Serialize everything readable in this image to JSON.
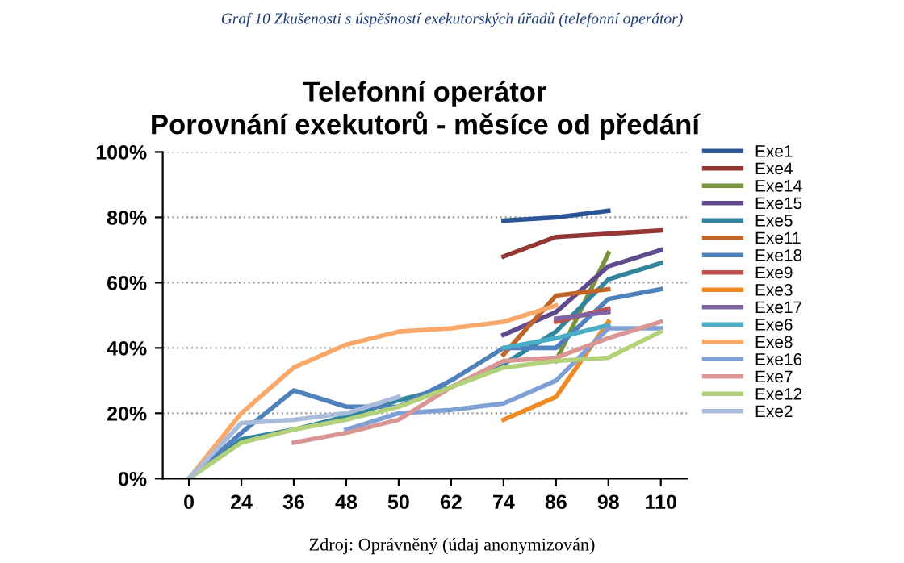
{
  "chart_data": {
    "type": "line",
    "title": "Telefonní operátor\nPorovnání exekutorů - měsíce od předání",
    "categories": [
      "0",
      "24",
      "36",
      "48",
      "50",
      "62",
      "74",
      "86",
      "98",
      "110"
    ],
    "series": [
      {
        "name": "Exe1",
        "color": "#2c5597",
        "values": [
          null,
          null,
          null,
          null,
          null,
          null,
          0.79,
          0.8,
          0.82,
          null
        ]
      },
      {
        "name": "Exe4",
        "color": "#943634",
        "values": [
          null,
          null,
          null,
          null,
          null,
          null,
          0.68,
          0.74,
          0.75,
          0.76
        ]
      },
      {
        "name": "Exe14",
        "color": "#77933c",
        "values": [
          null,
          null,
          null,
          null,
          null,
          null,
          null,
          0.36,
          0.69,
          null
        ]
      },
      {
        "name": "Exe15",
        "color": "#5f4a8b",
        "values": [
          null,
          null,
          null,
          null,
          null,
          null,
          0.44,
          0.51,
          0.65,
          0.7
        ]
      },
      {
        "name": "Exe5",
        "color": "#31849b",
        "values": [
          0,
          0.12,
          0.15,
          0.19,
          0.24,
          0.28,
          0.35,
          0.45,
          0.61,
          0.66
        ]
      },
      {
        "name": "Exe11",
        "color": "#c0652a",
        "values": [
          null,
          null,
          null,
          null,
          null,
          null,
          0.38,
          0.56,
          0.58,
          null
        ]
      },
      {
        "name": "Exe18",
        "color": "#4f81bd",
        "values": [
          0,
          0.14,
          0.27,
          0.22,
          0.22,
          0.3,
          0.4,
          0.4,
          0.55,
          0.58
        ]
      },
      {
        "name": "Exe9",
        "color": "#c0504d",
        "values": [
          null,
          null,
          null,
          null,
          null,
          null,
          null,
          0.48,
          0.52,
          null
        ]
      },
      {
        "name": "Exe3",
        "color": "#f08a24",
        "values": [
          null,
          null,
          null,
          null,
          null,
          null,
          0.18,
          0.25,
          0.48,
          null
        ]
      },
      {
        "name": "Exe17",
        "color": "#8064a2",
        "values": [
          null,
          null,
          null,
          null,
          null,
          null,
          null,
          0.49,
          0.51,
          null
        ]
      },
      {
        "name": "Exe6",
        "color": "#4bacc6",
        "values": [
          null,
          null,
          null,
          null,
          null,
          null,
          0.4,
          0.43,
          0.47,
          null
        ]
      },
      {
        "name": "Exe8",
        "color": "#f9a86a",
        "values": [
          0,
          0.2,
          0.34,
          0.41,
          0.45,
          0.46,
          0.48,
          0.53,
          null,
          null
        ]
      },
      {
        "name": "Exe16",
        "color": "#7ea0d4",
        "values": [
          null,
          null,
          null,
          0.15,
          0.2,
          0.21,
          0.23,
          0.3,
          0.46,
          0.46
        ]
      },
      {
        "name": "Exe7",
        "color": "#d99694",
        "values": [
          null,
          null,
          0.11,
          0.14,
          0.18,
          0.28,
          0.36,
          0.37,
          0.43,
          0.48
        ]
      },
      {
        "name": "Exe12",
        "color": "#b3d07b",
        "values": [
          0,
          0.11,
          0.15,
          0.18,
          0.22,
          0.28,
          0.34,
          0.36,
          0.37,
          0.45
        ]
      },
      {
        "name": "Exe2",
        "color": "#a9bcdc",
        "values": [
          0,
          0.17,
          0.18,
          0.2,
          0.25,
          null,
          null,
          null,
          null,
          null
        ]
      }
    ],
    "ylim": [
      0,
      1
    ],
    "yticks": [
      {
        "value": 0,
        "label": "0%"
      },
      {
        "value": 0.2,
        "label": "20%"
      },
      {
        "value": 0.4,
        "label": "40%"
      },
      {
        "value": 0.6,
        "label": "60%"
      },
      {
        "value": 0.8,
        "label": "80%"
      },
      {
        "value": 1,
        "label": "100%"
      }
    ],
    "grid": "y",
    "legend": "right",
    "marker": "none",
    "line_style": "solid",
    "annotations": [
      "Graf 10 Zkušenosti s úspěšností exekutorských úřadů (telefonní operátor)",
      "Zdroj: Oprávněný (údaj anonymizován)"
    ]
  }
}
